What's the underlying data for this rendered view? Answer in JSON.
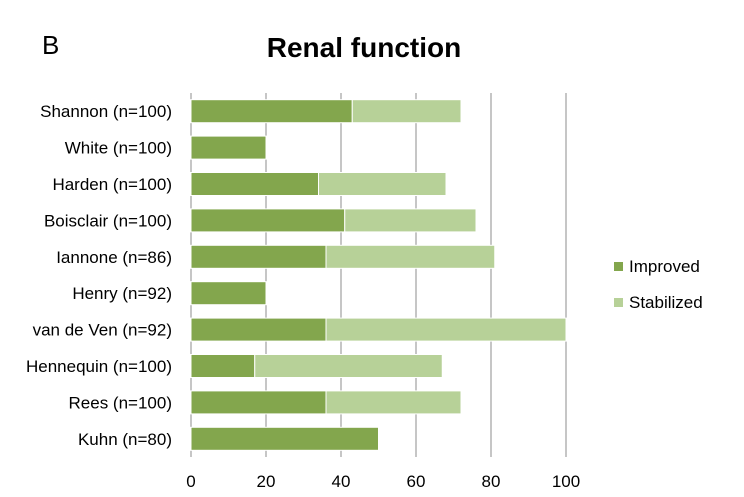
{
  "panel_label": "B",
  "chart_data": {
    "type": "bar",
    "orientation": "horizontal",
    "stacked": true,
    "title": "Renal function",
    "categories": [
      "Shannon (n=100)",
      "White (n=100)",
      "Harden (n=100)",
      "Boisclair (n=100)",
      "Iannone (n=86)",
      "Henry (n=92)",
      "van de Ven (n=92)",
      "Hennequin (n=100)",
      "Rees (n=100)",
      "Kuhn (n=80)"
    ],
    "series": [
      {
        "name": "Improved",
        "color": "#83a64d",
        "values": [
          43,
          20,
          34,
          41,
          36,
          20,
          36,
          17,
          36,
          50
        ]
      },
      {
        "name": "Stabilized",
        "color": "#b7d198",
        "values": [
          29,
          0,
          34,
          35,
          45,
          0,
          64,
          50,
          36,
          0
        ]
      }
    ],
    "xlim": [
      0,
      100
    ],
    "xticks": [
      0,
      20,
      40,
      60,
      80,
      100
    ],
    "grid": "vertical",
    "legend_position": "right"
  }
}
